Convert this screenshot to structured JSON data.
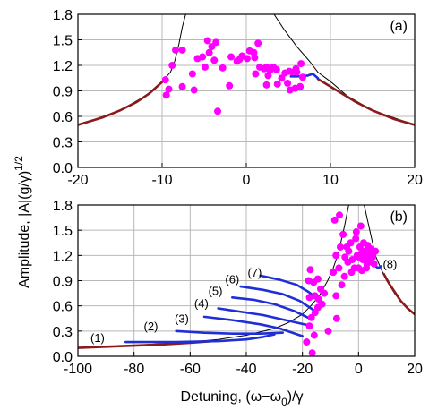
{
  "chart_data": [
    {
      "type": "line",
      "panel_label": "(a)",
      "xlim": [
        -20,
        20
      ],
      "ylim": [
        0,
        1.8
      ],
      "xticks": [
        "-20",
        "-10",
        "0",
        "10",
        "20"
      ],
      "yticks": [
        "0.0",
        "0.3",
        "0.6",
        "0.9",
        "1.2",
        "1.5",
        "1.8"
      ],
      "grid": true,
      "series": [
        {
          "style": "thin-black-line",
          "color": "#000000",
          "points": [
            [
              -19.9,
              0.5
            ],
            [
              -15,
              0.67
            ],
            [
              -12,
              0.84
            ],
            [
              -10,
              1.01
            ],
            [
              -9,
              1.12
            ],
            [
              -8.5,
              1.25
            ],
            [
              -8,
              1.45
            ],
            [
              -7.6,
              1.65
            ],
            [
              -7.2,
              1.8
            ]
          ]
        },
        {
          "style": "thin-black-line",
          "color": "#000000",
          "points": [
            [
              3.3,
              1.8
            ],
            [
              4.5,
              1.62
            ],
            [
              6,
              1.42
            ],
            [
              7.5,
              1.25
            ],
            [
              8.5,
              1.12
            ],
            [
              10,
              1.01
            ],
            [
              12,
              0.84
            ],
            [
              15,
              0.67
            ],
            [
              20,
              0.5
            ]
          ]
        },
        {
          "style": "dark-red-thick-line",
          "color": "#8b1a1a",
          "points": [
            [
              -20,
              0.5
            ],
            [
              -17,
              0.59
            ],
            [
              -15,
              0.67
            ],
            [
              -13,
              0.77
            ],
            [
              -11.5,
              0.87
            ],
            [
              -10.5,
              0.96
            ],
            [
              -9.6,
              1.04
            ]
          ]
        },
        {
          "style": "dark-red-thick-line",
          "color": "#8b1a1a",
          "points": [
            [
              8.5,
              1.04
            ],
            [
              9.5,
              0.98
            ],
            [
              11,
              0.89
            ],
            [
              13,
              0.77
            ],
            [
              15,
              0.67
            ],
            [
              17.5,
              0.57
            ],
            [
              20,
              0.5
            ]
          ]
        },
        {
          "style": "blue-thick-line",
          "color": "#1f2ed6",
          "points": [
            [
              5.3,
              1.07
            ],
            [
              6.3,
              1.07
            ],
            [
              7.3,
              1.08
            ],
            [
              7.9,
              1.1
            ],
            [
              8.5,
              1.05
            ]
          ]
        },
        {
          "style": "magenta-dots",
          "color": "#ff00ff",
          "points": [
            [
              -9.5,
              0.85
            ],
            [
              -9.2,
              0.92
            ],
            [
              -9.6,
              1.03
            ],
            [
              -8.8,
              1.2
            ],
            [
              -8.4,
              1.38
            ],
            [
              -7.6,
              1.38
            ],
            [
              -7.6,
              0.95
            ],
            [
              -6.4,
              1.1
            ],
            [
              -6.2,
              0.91
            ],
            [
              -5.8,
              1.28
            ],
            [
              -5.2,
              1.3
            ],
            [
              -4.9,
              1.18
            ],
            [
              -4.6,
              1.49
            ],
            [
              -4.4,
              1.35
            ],
            [
              -4.1,
              1.42
            ],
            [
              -3.8,
              1.26
            ],
            [
              -3.6,
              1.47
            ],
            [
              -3.4,
              0.66
            ],
            [
              -2.8,
              1.17
            ],
            [
              -2.0,
              0.96
            ],
            [
              -1.8,
              1.3
            ],
            [
              -1.1,
              1.25
            ],
            [
              -0.8,
              1.27
            ],
            [
              -0.5,
              1.31
            ],
            [
              0.1,
              1.28
            ],
            [
              0.4,
              1.37
            ],
            [
              0.9,
              1.35
            ],
            [
              1.0,
              1.29
            ],
            [
              1.4,
              1.46
            ],
            [
              1.1,
              1.1
            ],
            [
              1.6,
              1.18
            ],
            [
              2.1,
              1.16
            ],
            [
              2.4,
              1.18
            ],
            [
              2.8,
              1.14
            ],
            [
              3.2,
              1.18
            ],
            [
              3.6,
              1.15
            ],
            [
              2.4,
              0.97
            ],
            [
              2.6,
              1.08
            ],
            [
              3.7,
              0.98
            ],
            [
              4.2,
              1.05
            ],
            [
              4.6,
              1.11
            ],
            [
              5.1,
              1.13
            ],
            [
              5.5,
              1.12
            ],
            [
              6.0,
              1.12
            ],
            [
              4.9,
              0.99
            ],
            [
              5.2,
              0.91
            ],
            [
              5.8,
              0.93
            ],
            [
              6.4,
              0.95
            ],
            [
              6.7,
              1.06
            ],
            [
              5.9,
              1.16
            ],
            [
              6.5,
              1.22
            ]
          ]
        }
      ]
    },
    {
      "type": "line",
      "panel_label": "(b)",
      "xlim": [
        -100,
        20
      ],
      "ylim": [
        0,
        1.8
      ],
      "xticks": [
        "-100",
        "-80",
        "-60",
        "-40",
        "-20",
        "0",
        "20"
      ],
      "yticks": [
        "0.0",
        "0.3",
        "0.6",
        "0.9",
        "1.2",
        "1.5",
        "1.8"
      ],
      "grid": true,
      "series": [
        {
          "style": "thin-black-line",
          "color": "#000000",
          "points": [
            [
              -100,
              0.1
            ],
            [
              -80,
              0.13
            ],
            [
              -60,
              0.17
            ],
            [
              -50,
              0.2
            ],
            [
              -40,
              0.25
            ],
            [
              -30,
              0.33
            ],
            [
              -25,
              0.4
            ],
            [
              -20,
              0.5
            ],
            [
              -17,
              0.6
            ],
            [
              -14,
              0.72
            ],
            [
              -11,
              0.9
            ],
            [
              -9,
              1.05
            ],
            [
              -7,
              1.25
            ],
            [
              -5,
              1.55
            ],
            [
              -3.5,
              1.8
            ]
          ]
        },
        {
          "style": "thin-black-line",
          "color": "#000000",
          "points": [
            [
              2,
              1.8
            ],
            [
              4,
              1.5
            ],
            [
              6,
              1.2
            ],
            [
              8,
              1.04
            ],
            [
              10,
              0.9
            ],
            [
              13,
              0.74
            ],
            [
              16,
              0.62
            ],
            [
              20,
              0.5
            ]
          ]
        },
        {
          "style": "dark-red-thick-line",
          "color": "#8b1a1a",
          "points": [
            [
              -100,
              0.1
            ],
            [
              -85,
              0.12
            ],
            [
              -70,
              0.14
            ],
            [
              -60,
              0.16
            ],
            [
              -52,
              0.18
            ]
          ]
        },
        {
          "style": "dark-red-thick-line",
          "color": "#8b1a1a",
          "points": [
            [
              9,
              0.98
            ],
            [
              11,
              0.86
            ],
            [
              13,
              0.76
            ],
            [
              15,
              0.66
            ],
            [
              17.5,
              0.57
            ],
            [
              20,
              0.5
            ]
          ]
        },
        {
          "style": "blue-thick-line",
          "color": "#1f2ed6",
          "points": [
            [
              -83,
              0.17
            ],
            [
              -65,
              0.17
            ],
            [
              -50,
              0.18
            ],
            [
              -40,
              0.2
            ],
            [
              -34,
              0.23
            ],
            [
              -30,
              0.26
            ]
          ]
        },
        {
          "style": "blue-thick-line",
          "color": "#1f2ed6",
          "points": [
            [
              -65,
              0.3
            ],
            [
              -55,
              0.28
            ],
            [
              -45,
              0.27
            ],
            [
              -35,
              0.27
            ],
            [
              -27,
              0.28
            ]
          ]
        },
        {
          "style": "blue-thick-line",
          "color": "#1f2ed6",
          "points": [
            [
              -55,
              0.47
            ],
            [
              -45,
              0.43
            ],
            [
              -35,
              0.38
            ],
            [
              -28,
              0.33
            ],
            [
              -20,
              0.24
            ]
          ]
        },
        {
          "style": "blue-thick-line",
          "color": "#1f2ed6",
          "points": [
            [
              -50,
              0.57
            ],
            [
              -42,
              0.53
            ],
            [
              -34,
              0.49
            ],
            [
              -26,
              0.43
            ],
            [
              -18,
              0.37
            ]
          ]
        },
        {
          "style": "blue-thick-line",
          "color": "#1f2ed6",
          "points": [
            [
              -45,
              0.7
            ],
            [
              -37,
              0.67
            ],
            [
              -30,
              0.62
            ],
            [
              -23,
              0.54
            ],
            [
              -18,
              0.46
            ]
          ]
        },
        {
          "style": "blue-thick-line",
          "color": "#1f2ed6",
          "points": [
            [
              -42,
              0.83
            ],
            [
              -34,
              0.79
            ],
            [
              -27,
              0.74
            ],
            [
              -21,
              0.66
            ],
            [
              -16,
              0.55
            ]
          ]
        },
        {
          "style": "blue-thick-line",
          "color": "#1f2ed6",
          "points": [
            [
              -35,
              0.96
            ],
            [
              -28,
              0.91
            ],
            [
              -22,
              0.85
            ],
            [
              -18,
              0.77
            ],
            [
              -14,
              0.67
            ]
          ]
        },
        {
          "style": "blue-thick-line",
          "color": "#1f2ed6",
          "points": [
            [
              4,
              1.1
            ],
            [
              5,
              1.1
            ],
            [
              6,
              1.07
            ],
            [
              7,
              1.05
            ],
            [
              8,
              1.07
            ]
          ]
        },
        {
          "style": "magenta-dots",
          "color": "#ff00ff",
          "points": [
            [
              -16.5,
              0.04
            ],
            [
              -18.5,
              0.17
            ],
            [
              -15.8,
              0.25
            ],
            [
              -17.5,
              0.36
            ],
            [
              -16.8,
              0.46
            ],
            [
              -15.5,
              0.52
            ],
            [
              -14.5,
              0.58
            ],
            [
              -17.5,
              0.7
            ],
            [
              -15.5,
              0.72
            ],
            [
              -14.2,
              0.68
            ],
            [
              -13.0,
              0.62
            ],
            [
              -13.5,
              0.8
            ],
            [
              -12.2,
              0.75
            ],
            [
              -17.8,
              0.9
            ],
            [
              -16.0,
              0.88
            ],
            [
              -14.5,
              0.92
            ],
            [
              -17.2,
              1.03
            ],
            [
              -10.8,
              0.3
            ],
            [
              -7.8,
              0.45
            ],
            [
              -8.0,
              0.72
            ],
            [
              -9.0,
              1.0
            ],
            [
              -7.0,
              1.05
            ],
            [
              -8.0,
              1.2
            ],
            [
              -6.5,
              1.3
            ],
            [
              -5.5,
              1.45
            ],
            [
              -8.5,
              1.62
            ],
            [
              -6.8,
              1.68
            ],
            [
              -4.8,
              1.18
            ],
            [
              -3.5,
              1.25
            ],
            [
              -2.8,
              1.35
            ],
            [
              -2.2,
              1.15
            ],
            [
              -1.0,
              1.4
            ],
            [
              -0.5,
              1.2
            ],
            [
              0.2,
              1.18
            ],
            [
              0.5,
              1.3
            ],
            [
              1.0,
              1.22
            ],
            [
              1.5,
              1.15
            ],
            [
              2.0,
              1.25
            ],
            [
              2.5,
              1.18
            ],
            [
              3.0,
              1.1
            ],
            [
              3.5,
              1.2
            ],
            [
              4.0,
              1.15
            ],
            [
              4.5,
              1.22
            ],
            [
              5.0,
              1.18
            ],
            [
              -1.5,
              1.05
            ],
            [
              0.0,
              1.05
            ],
            [
              1.2,
              1.02
            ],
            [
              -2.5,
              1.0
            ],
            [
              -3.8,
              1.12
            ],
            [
              -5.0,
              0.95
            ],
            [
              1.8,
              1.35
            ],
            [
              3.2,
              1.32
            ],
            [
              4.2,
              1.28
            ],
            [
              -0.8,
              1.48
            ],
            [
              0.8,
              1.55
            ],
            [
              -4.2,
              1.3
            ],
            [
              -6.0,
              0.85
            ],
            [
              2.8,
              1.05
            ],
            [
              5.5,
              1.1
            ],
            [
              6.0,
              1.25
            ]
          ]
        }
      ],
      "annotations": [
        {
          "text": "(1)",
          "x": -93,
          "y": 0.17
        },
        {
          "text": "(2)",
          "x": -74,
          "y": 0.31
        },
        {
          "text": "(3)",
          "x": -63,
          "y": 0.4
        },
        {
          "text": "(4)",
          "x": -56,
          "y": 0.58
        },
        {
          "text": "(5)",
          "x": -51,
          "y": 0.73
        },
        {
          "text": "(6)",
          "x": -45,
          "y": 0.87
        },
        {
          "text": "(7)",
          "x": -37,
          "y": 0.95
        },
        {
          "text": "(8)",
          "x": 11.2,
          "y": 1.05
        }
      ]
    }
  ],
  "ylabel_shared": "Amplitude, |A|(g/γ)",
  "ylabel_superscript": "1/2",
  "xlabel_shared": "Detuning, (ω−ω",
  "xlabel_subscript": "0",
  "xlabel_suffix": ")/γ"
}
